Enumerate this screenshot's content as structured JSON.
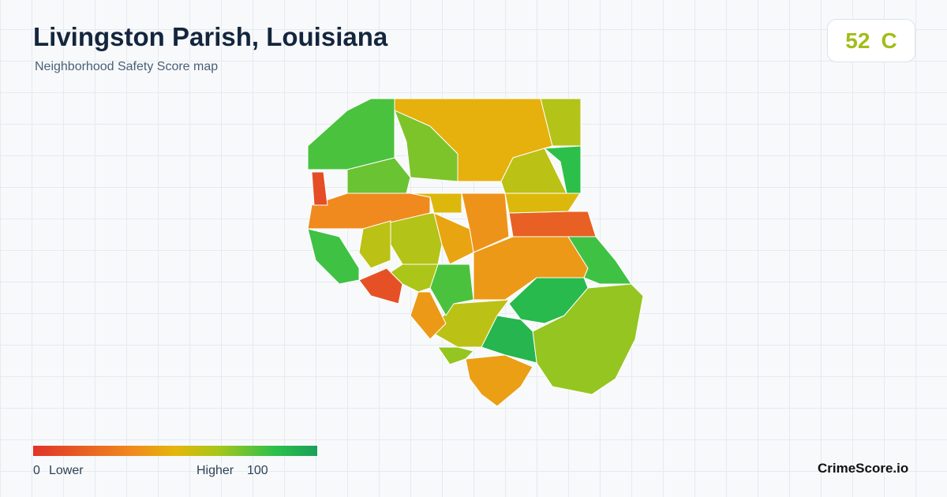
{
  "header": {
    "title": "Livingston Parish, Louisiana",
    "subtitle": "Neighborhood Safety Score map"
  },
  "score": {
    "value": 52,
    "grade": "C"
  },
  "legend": {
    "min": 0,
    "min_label": "Lower",
    "max_label": "Higher",
    "max": 100
  },
  "brand": "CrimeScore.io",
  "regions": [
    {
      "score": 48
    },
    {
      "score": 62
    },
    {
      "score": 85
    },
    {
      "score": 60
    },
    {
      "score": 80
    },
    {
      "score": 72
    },
    {
      "score": 38
    },
    {
      "score": 18
    },
    {
      "score": 52
    },
    {
      "score": 40
    },
    {
      "score": 82
    },
    {
      "score": 88
    },
    {
      "score": 68
    },
    {
      "score": 90
    },
    {
      "score": 42
    },
    {
      "score": 60
    },
    {
      "score": 68
    },
    {
      "score": 40
    },
    {
      "score": 80
    },
    {
      "score": 12
    },
    {
      "score": 82
    },
    {
      "score": 62
    },
    {
      "score": 35
    },
    {
      "score": 52
    },
    {
      "score": 75
    },
    {
      "score": 10
    },
    {
      "score": 60
    },
    {
      "score": 44
    },
    {
      "score": 64
    }
  ]
}
